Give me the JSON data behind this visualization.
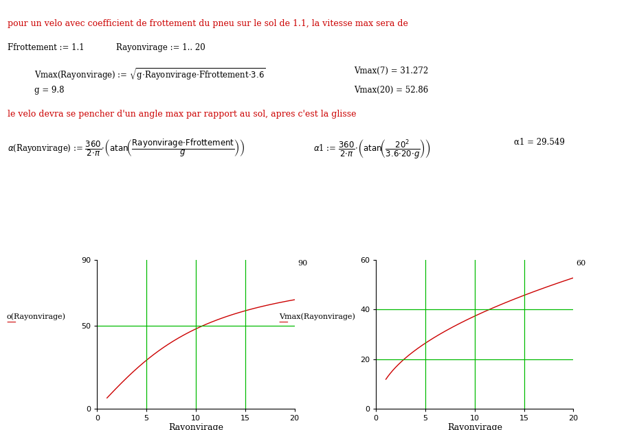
{
  "title_line1": "pour un velo avec coefficient de frottement du pneu sur le sol de 1.1, la vitesse max sera de",
  "title_color": "#cc0000",
  "text_color": "#000000",
  "bg_color": "#ffffff",
  "Ffrottement": 1.1,
  "g": 9.8,
  "Vmax7": 31.272,
  "Vmax20": 52.86,
  "alpha1": 29.549,
  "red_color": "#cc0000",
  "green_color": "#00bb00",
  "plot1": {
    "xlabel": "Rayonvirage",
    "ylabel_left": "o(Rayonvirage)",
    "xmin": 0,
    "xmax": 20,
    "ymin": 0,
    "ymax": 90,
    "xticks": [
      0,
      5,
      10,
      15,
      20
    ],
    "yticks": [
      0,
      50,
      90
    ],
    "hlines": [
      50
    ],
    "vlines": [
      5,
      10,
      15
    ],
    "top_label": "90"
  },
  "plot2": {
    "xlabel": "Rayonvirage",
    "ylabel_left": "Vmax(Rayonvirage)",
    "xmin": 0,
    "xmax": 20,
    "ymin": 0,
    "ymax": 60,
    "xticks": [
      0,
      5,
      10,
      15,
      20
    ],
    "yticks": [
      0,
      20,
      40,
      60
    ],
    "hlines": [
      20,
      40
    ],
    "vlines": [
      5,
      10,
      15
    ],
    "top_label": "60"
  }
}
